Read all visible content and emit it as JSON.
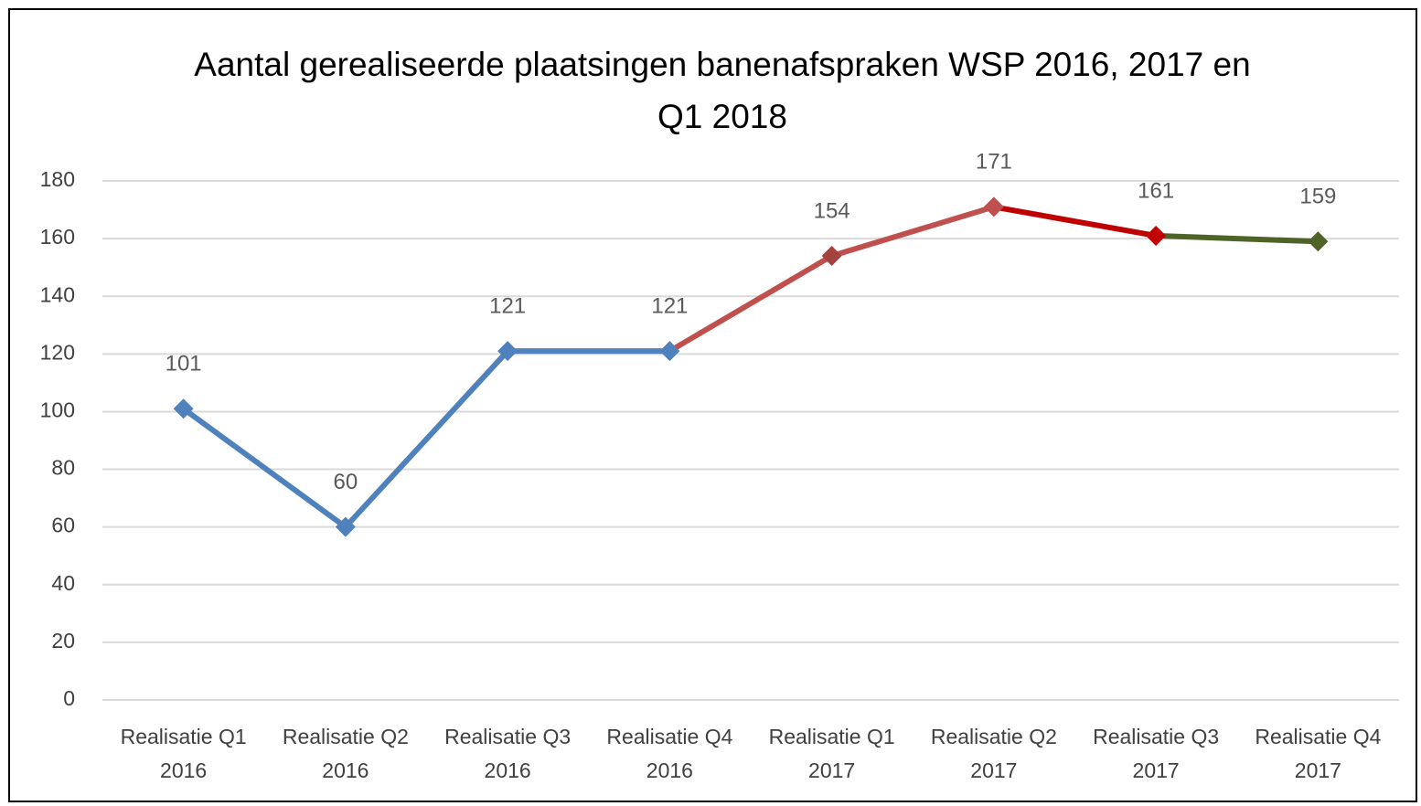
{
  "chart_data": {
    "type": "line",
    "title": "Aantal gerealiseerde plaatsingen banenafspraken WSP 2016, 2017 en Q1 2018",
    "categories": [
      "Realisatie Q1 2016",
      "Realisatie Q2 2016",
      "Realisatie Q3 2016",
      "Realisatie Q4 2016",
      "Realisatie Q1 2017",
      "Realisatie Q2 2017",
      "Realisatie Q3 2017",
      "Realisatie Q4 2017"
    ],
    "values": [
      101,
      60,
      121,
      121,
      154,
      171,
      161,
      159
    ],
    "marker_colors": [
      "#4f81bd",
      "#4f81bd",
      "#4f81bd",
      "#4f81bd",
      "#a3423f",
      "#c0504d",
      "#c00000",
      "#4f6228"
    ],
    "segment_colors": [
      "#4f81bd",
      "#4f81bd",
      "#4f81bd",
      "#c0504d",
      "#c0504d",
      "#c00000",
      "#4f6228"
    ],
    "ylim": [
      0,
      180
    ],
    "yticks": [
      0,
      20,
      40,
      60,
      80,
      100,
      120,
      140,
      160,
      180
    ],
    "grid": true
  }
}
